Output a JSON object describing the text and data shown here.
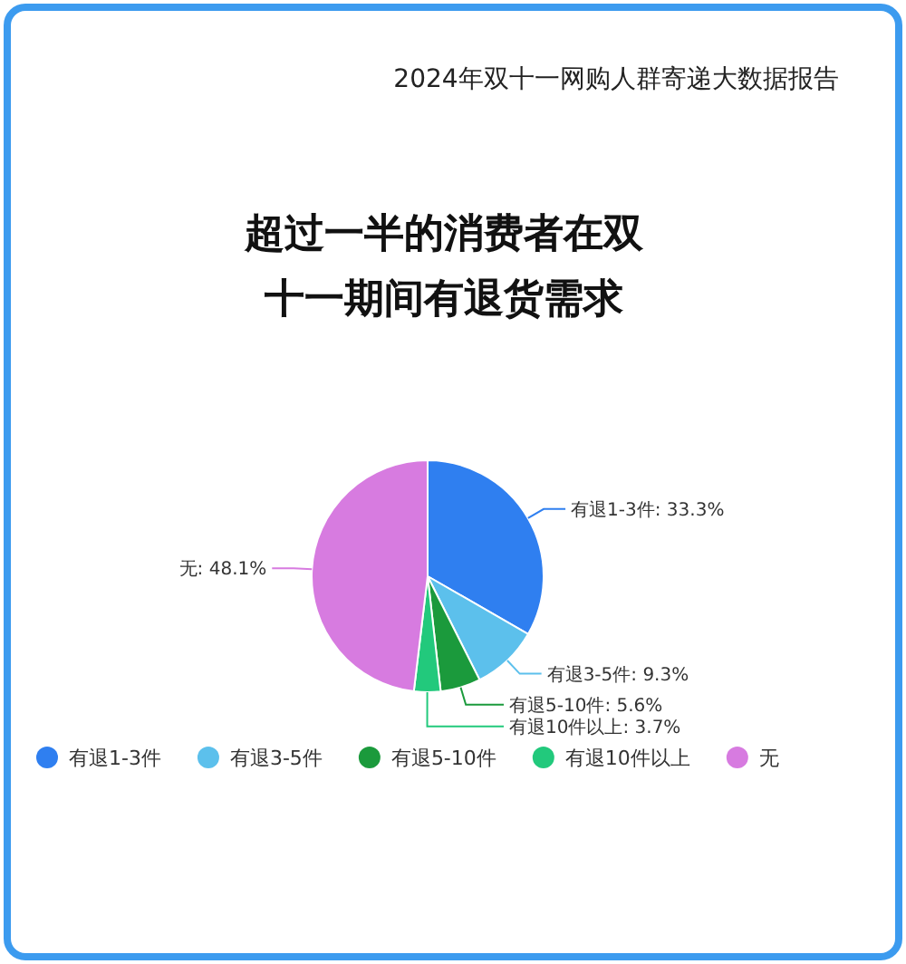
{
  "chart_data": {
    "type": "pie",
    "subtitle": "2024年双十一网购人群寄递大数据报告",
    "title": "超过一半的消费者在双十一期间有退货需求",
    "categories": [
      "有退1-3件",
      "有退3-5件",
      "有退5-10件",
      "有退10件以上",
      "无"
    ],
    "values": [
      33.3,
      9.3,
      5.6,
      3.7,
      48.1
    ],
    "colors": [
      "#2f7ff0",
      "#5cc0ec",
      "#1b9a3c",
      "#22c97c",
      "#d77be0"
    ],
    "value_labels": [
      "有退1-3件: 33.3%",
      "有退3-5件: 9.3%",
      "有退5-10件: 5.6%",
      "有退10件以上: 3.7%",
      "无: 48.1%"
    ],
    "legend": "bottom"
  }
}
